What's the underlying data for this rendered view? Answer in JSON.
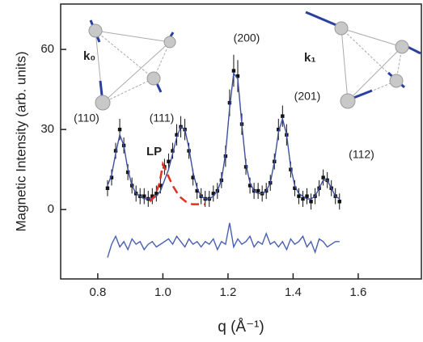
{
  "chart_data": {
    "type": "scatter",
    "x_label": "q (Å⁻¹)",
    "y_label": "Magnetic Intensity (arb. units)",
    "xlim": [
      0.686,
      1.794
    ],
    "xticks": [
      0.8,
      {
        "value": 1,
        "label": "1.0"
      },
      1.2,
      1.4,
      1.6
    ],
    "ylim": [
      -26,
      77
    ],
    "yticks": [
      0,
      30,
      60
    ],
    "annotations": [
      "(110)",
      "(111)",
      "(200)",
      "(201)",
      "(112)"
    ],
    "inset_labels": [
      "k₀",
      "k₁"
    ],
    "x": [
      0.83,
      0.8425,
      0.855,
      0.8675,
      0.88,
      0.8925,
      0.905,
      0.9175,
      0.93,
      0.9425,
      0.955,
      0.9675,
      0.98,
      0.9925,
      1.005,
      1.0175,
      1.03,
      1.0425,
      1.055,
      1.0675,
      1.08,
      1.0925,
      1.105,
      1.1175,
      1.13,
      1.1425,
      1.155,
      1.1675,
      1.18,
      1.1925,
      1.205,
      1.2175,
      1.23,
      1.2425,
      1.255,
      1.2675,
      1.28,
      1.2925,
      1.305,
      1.3175,
      1.33,
      1.3425,
      1.355,
      1.3675,
      1.38,
      1.3925,
      1.405,
      1.4175,
      1.43,
      1.4425,
      1.455,
      1.4675,
      1.48,
      1.4925,
      1.505,
      1.5175,
      1.53,
      1.5425
    ],
    "series": [
      {
        "style": "points",
        "color": "#111111",
        "values": [
          8,
          12,
          22,
          30,
          24,
          14,
          9,
          6,
          5,
          5,
          4,
          5,
          6,
          9,
          16,
          18,
          22,
          28,
          31,
          30,
          22,
          12,
          7,
          5,
          4,
          4,
          6,
          7,
          11,
          20,
          40,
          52,
          50,
          32,
          16,
          9,
          7,
          7,
          6,
          7,
          10,
          18,
          30,
          35,
          28,
          15,
          8,
          5,
          4,
          5,
          3,
          5,
          8,
          12,
          11,
          8,
          5,
          3
        ],
        "errors": [
          3,
          3,
          3,
          4,
          3,
          3,
          3,
          3,
          3,
          3,
          3,
          3,
          3,
          3,
          3,
          3,
          3,
          4,
          4,
          4,
          3,
          3,
          3,
          3,
          3,
          3,
          3,
          3,
          3,
          4,
          5,
          6,
          6,
          4,
          3,
          3,
          3,
          3,
          3,
          3,
          3,
          3,
          4,
          4,
          4,
          3,
          3,
          3,
          3,
          3,
          3,
          3,
          3,
          3,
          3,
          3,
          3,
          3
        ]
      },
      {
        "style": "line",
        "color": "#3d4f9f",
        "values": [
          9,
          13,
          21,
          28,
          24,
          15,
          9,
          6,
          5,
          4,
          4,
          4,
          5,
          7,
          11,
          15,
          21,
          27,
          31,
          30,
          23,
          14,
          8,
          5,
          4,
          4,
          5,
          7,
          11,
          21,
          38,
          51,
          49,
          32,
          17,
          10,
          7,
          6,
          6,
          7,
          10,
          18,
          29,
          34,
          28,
          16,
          9,
          6,
          5,
          4,
          4,
          5,
          8,
          11,
          11,
          8,
          5,
          4
        ]
      },
      {
        "name": "LP",
        "style": "dashed",
        "color": "#e0301e",
        "x": [
          0.96,
          0.975,
          0.99,
          1.0,
          1.015,
          1.03,
          1.05,
          1.07,
          1.09,
          1.11,
          1.13
        ],
        "values": [
          3,
          5,
          10,
          17,
          13,
          9,
          5,
          3,
          2,
          2,
          2
        ]
      },
      {
        "style": "line",
        "color": "#4a5fb2",
        "values": [
          -18,
          -13,
          -10,
          -14,
          -12,
          -15,
          -11,
          -13,
          -12,
          -15,
          -13,
          -12,
          -14,
          -13,
          -12,
          -11,
          -13,
          -10,
          -12,
          -14,
          -11,
          -13,
          -12,
          -14,
          -12,
          -13,
          -11,
          -15,
          -12,
          -13,
          -5,
          -14,
          -11,
          -13,
          -12,
          -10,
          -14,
          -12,
          -13,
          -9,
          -13,
          -12,
          -14,
          -12,
          -15,
          -11,
          -13,
          -12,
          -10,
          -14,
          -12,
          -16,
          -11,
          -12,
          -14,
          -13,
          -12,
          -12
        ]
      }
    ]
  }
}
